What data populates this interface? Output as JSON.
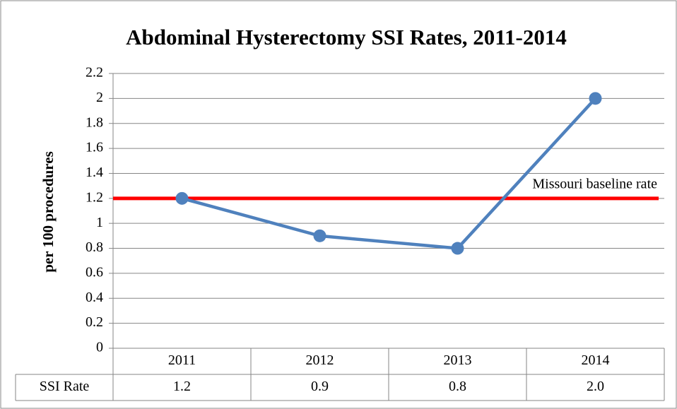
{
  "chart_data": {
    "type": "line",
    "title": "Abdominal Hysterectomy SSI Rates, 2011-2014",
    "y_label": "per 100 procedures",
    "categories": [
      "2011",
      "2012",
      "2013",
      "2014"
    ],
    "series": [
      {
        "name": "SSI Rate",
        "color": "#4f81bd",
        "values": [
          1.2,
          0.9,
          0.8,
          2.0
        ],
        "value_labels": [
          "1.2",
          "0.9",
          "0.8",
          "2.0"
        ]
      }
    ],
    "baseline": {
      "value": 1.2,
      "label": "Missouri baseline rate",
      "color": "#ff0000"
    },
    "ylim": [
      0,
      2.2
    ],
    "yticks": [
      0,
      0.2,
      0.4,
      0.6,
      0.8,
      1,
      1.2,
      1.4,
      1.6,
      1.8,
      2,
      2.2
    ],
    "grid": true
  }
}
